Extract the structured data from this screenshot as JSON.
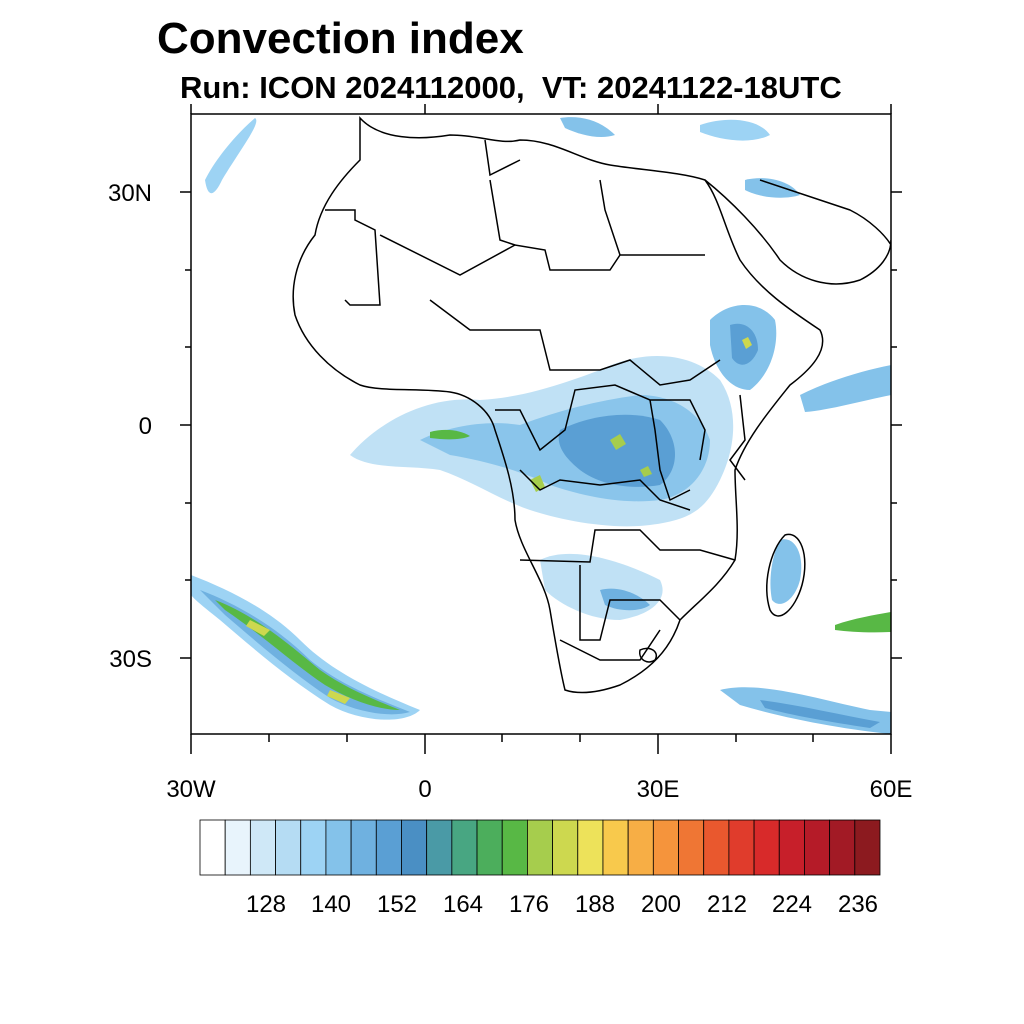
{
  "header": {
    "title": "Convection index",
    "run_label": "Run: ICON 2024112000,",
    "vt_label": "VT: 20241122-18UTC"
  },
  "map": {
    "lon_range": [
      -30,
      60
    ],
    "lat_range": [
      -40,
      40
    ],
    "lat_ticks": [
      {
        "value": 30,
        "label": "30N"
      },
      {
        "value": 0,
        "label": "0"
      },
      {
        "value": -30,
        "label": "30S"
      }
    ],
    "lon_ticks": [
      {
        "value": -30,
        "label": "30W"
      },
      {
        "value": 0,
        "label": "0"
      },
      {
        "value": 30,
        "label": "30E"
      },
      {
        "value": 60,
        "label": "60E"
      }
    ]
  },
  "colorbar": {
    "colors": [
      "#ffffff",
      "#e8f4fc",
      "#cfe8f7",
      "#b5dcf3",
      "#9dd3f4",
      "#84c2ea",
      "#6fb1e0",
      "#5a9fd4",
      "#4a8fc4",
      "#4a9aa6",
      "#48a682",
      "#4cae5c",
      "#58b845",
      "#a6cd4d",
      "#cdd84f",
      "#ede25a",
      "#f8c94c",
      "#f7ae45",
      "#f5943c",
      "#ef7634",
      "#e9582e",
      "#e03c2c",
      "#d82a2a",
      "#c71f2a",
      "#b51b28",
      "#a21a25",
      "#8c1a1f"
    ],
    "labels": [
      "128",
      "140",
      "152",
      "164",
      "176",
      "188",
      "200",
      "212",
      "224",
      "236"
    ]
  }
}
